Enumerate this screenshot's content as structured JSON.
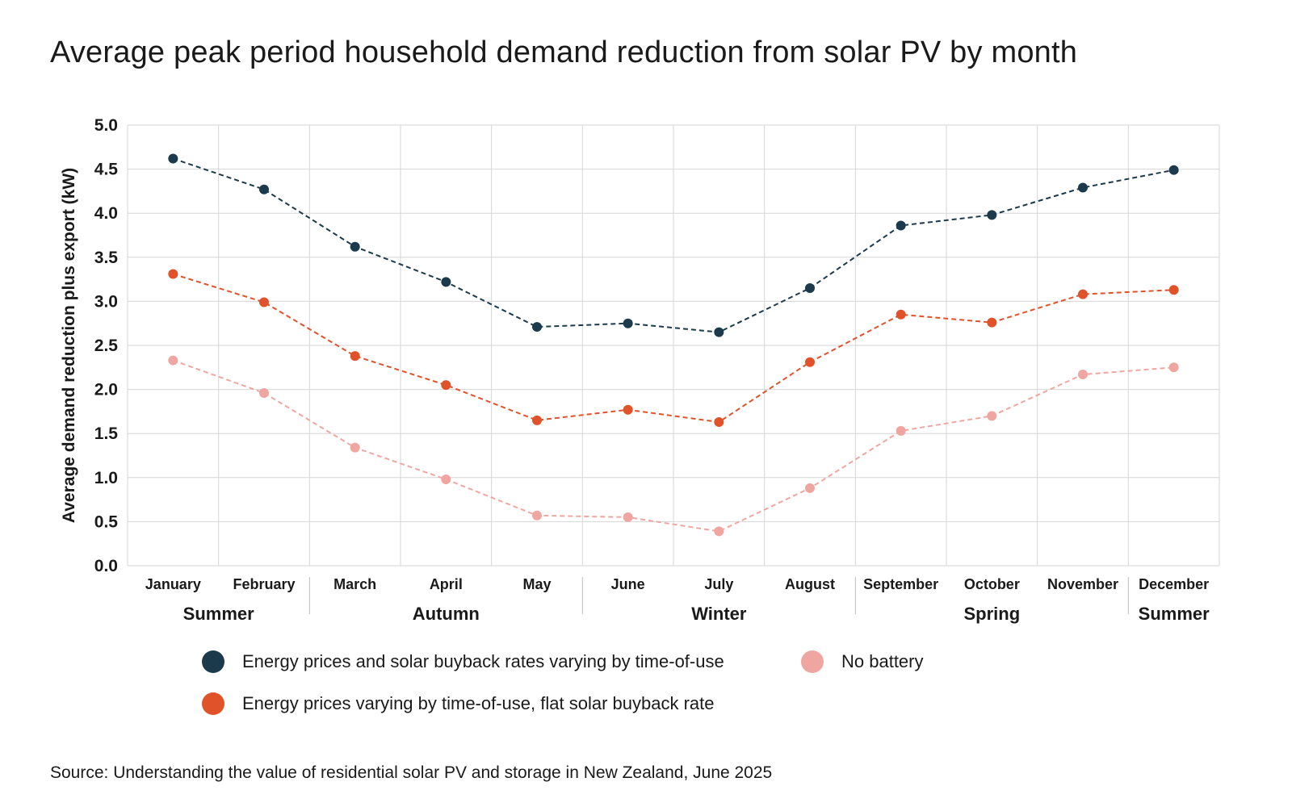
{
  "chart_data": {
    "type": "line",
    "title": "Average peak period household demand reduction from solar PV by month",
    "ylabel": "Average demand reduction plus export (kW)",
    "xlabel": "",
    "ylim": [
      0,
      5
    ],
    "y_ticks": [
      "0.0",
      "0.5",
      "1.0",
      "1.5",
      "2.0",
      "2.5",
      "3.0",
      "3.5",
      "4.0",
      "4.5",
      "5.0"
    ],
    "categories": [
      "January",
      "February",
      "March",
      "April",
      "May",
      "June",
      "July",
      "August",
      "September",
      "October",
      "November",
      "December"
    ],
    "seasons": [
      {
        "label": "Summer",
        "span": [
          0,
          1
        ]
      },
      {
        "label": "Autumn",
        "span": [
          2,
          4
        ]
      },
      {
        "label": "Winter",
        "span": [
          5,
          7
        ]
      },
      {
        "label": "Spring",
        "span": [
          8,
          10
        ]
      },
      {
        "label": "Summer",
        "span": [
          11,
          11
        ]
      }
    ],
    "grid": true,
    "series": [
      {
        "name": "Energy prices and solar buyback rates varying by time-of-use",
        "color": "#1b3a4b",
        "values": [
          4.62,
          4.27,
          3.62,
          3.22,
          2.71,
          2.75,
          2.65,
          3.15,
          3.86,
          3.98,
          4.29,
          4.49
        ]
      },
      {
        "name": "Energy prices varying by time-of-use, flat solar buyback rate",
        "color": "#e0522a",
        "values": [
          3.31,
          2.99,
          2.38,
          2.05,
          1.65,
          1.77,
          1.63,
          2.31,
          2.85,
          2.76,
          3.08,
          3.13
        ]
      },
      {
        "name": "No battery",
        "color": "#f0a6a0",
        "values": [
          2.33,
          1.96,
          1.34,
          0.98,
          0.57,
          0.55,
          0.39,
          0.88,
          1.53,
          1.7,
          2.17,
          2.25
        ]
      }
    ],
    "legend_position": "bottom"
  },
  "source": "Source: Understanding the value of residential solar PV and storage in New Zealand, June 2025"
}
